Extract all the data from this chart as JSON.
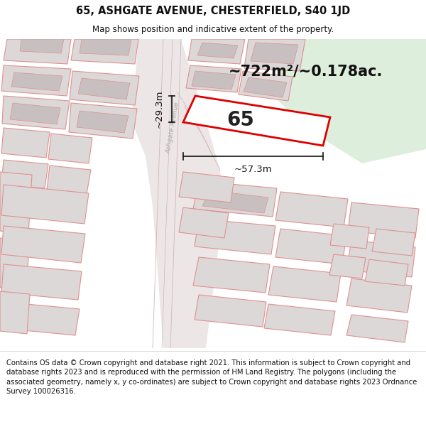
{
  "title_line1": "65, ASHGATE AVENUE, CHESTERFIELD, S40 1JD",
  "title_line2": "Map shows position and indicative extent of the property.",
  "area_label": "~722m²/~0.178ac.",
  "number_label": "65",
  "dim_width": "~57.3m",
  "dim_height": "~29.3m",
  "footer_text": "Contains OS data © Crown copyright and database right 2021. This information is subject to Crown copyright and database rights 2023 and is reproduced with the permission of HM Land Registry. The polygons (including the associated geometry, namely x, y co-ordinates) are subject to Crown copyright and database rights 2023 Ordnance Survey 100026316.",
  "bg_color": "#f5f0f0",
  "green_color": "#ddeedd",
  "road_fill": "#e8e2e2",
  "building_fill": "#ddd8d8",
  "building_stroke": "#e09090",
  "plot_fill": "#ffffff",
  "plot_stroke": "#dd0000",
  "dim_color": "#111111",
  "title_fontsize": 10.5,
  "subtitle_fontsize": 8.5,
  "area_fontsize": 15,
  "number_fontsize": 20,
  "dim_fontsize": 9.5,
  "footer_fontsize": 7.2,
  "road_label_color": "#aaaaaa",
  "road_label_fontsize": 6.5
}
